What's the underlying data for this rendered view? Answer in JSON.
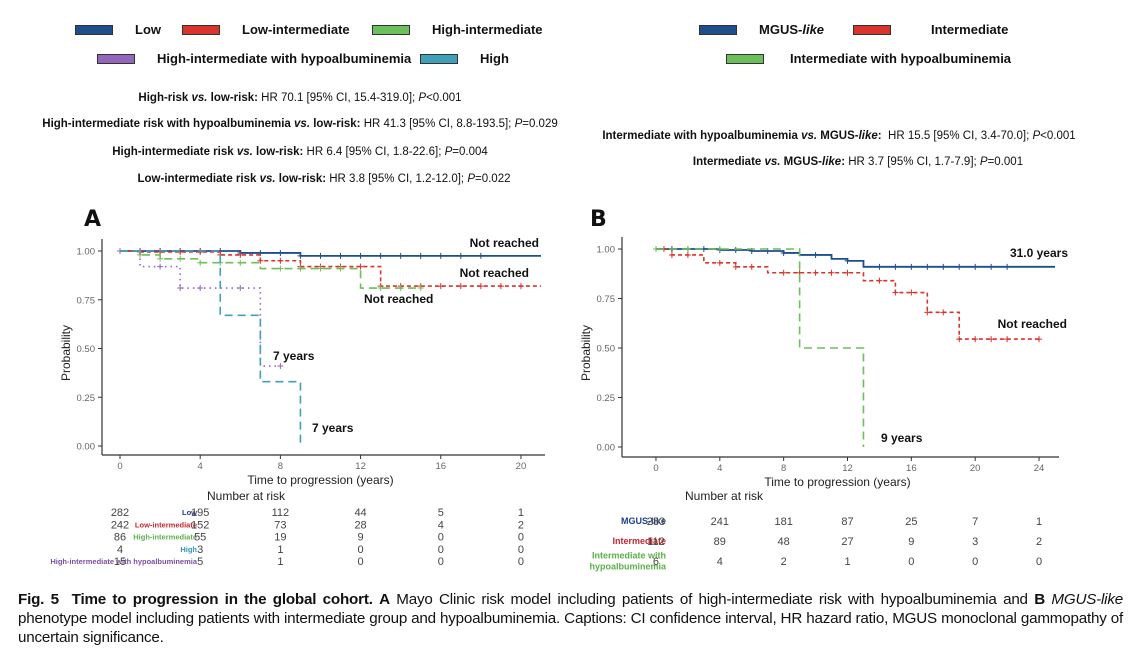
{
  "panelA": {
    "label": "A",
    "legend": [
      {
        "name": "Low",
        "color": "#1f4e8c"
      },
      {
        "name": "Low-intermediate",
        "color": "#d9342b"
      },
      {
        "name": "High-intermediate",
        "color": "#6cbf5a"
      },
      {
        "name": "High-intermediate with hypoalbuminemia",
        "color": "#9467bd"
      },
      {
        "name": "High",
        "color": "#3fa0b8"
      }
    ],
    "hr_lines": [
      {
        "bold": "High-risk ",
        "italic_bold": "vs.",
        "bold2": " low-risk:",
        "text": " HR 70.1 [95% CI, 15.4-319.0]; ",
        "p_label": "P",
        "p_value": "<0.001"
      },
      {
        "bold": "High-intermediate risk with hypoalbuminemia ",
        "italic_bold": "vs.",
        "bold2": " low-risk:",
        "text": " HR 41.3 [95% CI, 8.8-193.5]; ",
        "p_label": "P",
        "p_value": "=0.029"
      },
      {
        "bold": "High-intermediate risk ",
        "italic_bold": "vs.",
        "bold2": " low-risk:",
        "text": " HR 6.4 [95% CI, 1.8-22.6]; ",
        "p_label": "P",
        "p_value": "=0.004"
      },
      {
        "bold": "Low-intermediate risk ",
        "italic_bold": "vs.",
        "bold2": " low-risk:",
        "text": " HR 3.8 [95% CI, 1.2-12.0]; ",
        "p_label": "P",
        "p_value": "=0.022"
      }
    ],
    "risk_table": {
      "title": "Number at risk",
      "rows": [
        {
          "label": "Low",
          "color": "#1f3f8a",
          "values": [
            282,
            195,
            112,
            44,
            5,
            1
          ]
        },
        {
          "label": "Low-intermediate",
          "color": "#c0282c",
          "values": [
            242,
            152,
            73,
            28,
            4,
            2
          ]
        },
        {
          "label": "High-intermediate",
          "color": "#5cb04a",
          "values": [
            86,
            55,
            19,
            9,
            0,
            0
          ]
        },
        {
          "label": "High",
          "color": "#2f95b5",
          "values": [
            4,
            3,
            1,
            0,
            0,
            0
          ]
        },
        {
          "label": "High-intermediate with hypoalbuminemia",
          "color": "#7b4fa0",
          "values": [
            15,
            5,
            1,
            0,
            0,
            0
          ]
        }
      ]
    }
  },
  "panelB": {
    "label": "B",
    "legend": [
      {
        "name": "MGUS-",
        "name_italic": "like",
        "color": "#1f4e8c"
      },
      {
        "name": "Intermediate",
        "name_italic": "",
        "color": "#d9342b"
      },
      {
        "name": "Intermediate with hypoalbuminemia",
        "name_italic": "",
        "color": "#6cbf5a"
      }
    ],
    "hr_lines": [
      {
        "bold": "Intermediate with hypoalbuminemia ",
        "italic_bold": "vs.",
        "bold2": " MGUS-",
        "bold_italic_tail": "like",
        "bold3": ":",
        "text": "  HR 15.5 [95% CI, 3.4-70.0]; ",
        "p_label": "P",
        "p_value": "<0.001"
      },
      {
        "bold": "Intermediate ",
        "italic_bold": "vs.",
        "bold2": " MGUS-",
        "bold_italic_tail": "like",
        "bold3": ":",
        "text": " HR 3.7 [95% CI, 1.7-7.9]; ",
        "p_label": "P",
        "p_value": "=0.001"
      }
    ],
    "risk_table": {
      "title": "Number at risk",
      "rows": [
        {
          "label": "MGUS-like",
          "color": "#1f3f8a",
          "values": [
            283,
            241,
            181,
            87,
            25,
            7,
            1
          ]
        },
        {
          "label": "Intermediate",
          "color": "#c0282c",
          "values": [
            112,
            89,
            48,
            27,
            9,
            3,
            2
          ]
        },
        {
          "label": "Intermediate with hypoalbuminemia",
          "color": "#5cb04a",
          "values": [
            6,
            4,
            2,
            1,
            0,
            0,
            0
          ]
        }
      ]
    }
  },
  "caption": {
    "fig": "Fig. 5",
    "title": "Time to progression in the global cohort.",
    "part_a_label": "A",
    "part_a_text": " Mayo Clinic risk model including patients of high-intermediate risk with hypoalbuminemia and ",
    "part_b_label": "B",
    "part_b_italic": " MGUS-like",
    "part_b_text": " phenotype model including patients with intermediate group and hypoalbuminemia. Captions: CI confidence interval, HR hazard ratio, MGUS monoclonal gammopathy of uncertain significance."
  },
  "chart_data": [
    {
      "type": "line",
      "title": "A",
      "xlabel": "Time to progression (years)",
      "ylabel": "Probability",
      "xlim": [
        0,
        21
      ],
      "ylim": [
        0,
        1
      ],
      "x_ticks": [
        0,
        4,
        8,
        12,
        16,
        20
      ],
      "y_ticks": [
        "0.00",
        "0.25",
        "0.50",
        "0.75",
        "1.00"
      ],
      "grid": false,
      "legend_position": "top",
      "series": [
        {
          "name": "Low",
          "color": "#1f4e8c",
          "dash": "solid",
          "steps": [
            [
              0,
              1.0
            ],
            [
              6,
              0.99
            ],
            [
              9,
              0.975
            ],
            [
              21,
              0.975
            ]
          ],
          "censor": [
            0,
            1,
            2,
            3,
            4,
            5,
            6,
            7,
            8,
            9,
            10,
            11,
            12,
            13,
            14,
            15,
            16,
            17,
            18
          ],
          "median_label": "Not reached"
        },
        {
          "name": "Low-intermediate",
          "color": "#d9342b",
          "dash": "short",
          "steps": [
            [
              0,
              1.0
            ],
            [
              1,
              0.995
            ],
            [
              5,
              0.98
            ],
            [
              7,
              0.95
            ],
            [
              9,
              0.92
            ],
            [
              13,
              0.82
            ],
            [
              21,
              0.82
            ]
          ],
          "censor": [
            1,
            2,
            3,
            4,
            5,
            6,
            7,
            8,
            9,
            10,
            11,
            12,
            13,
            14,
            15,
            16,
            17,
            18,
            19,
            20
          ],
          "median_label": "Not reached"
        },
        {
          "name": "High-intermediate",
          "color": "#6cbf5a",
          "dash": "long",
          "steps": [
            [
              0,
              1.0
            ],
            [
              1,
              0.98
            ],
            [
              2,
              0.96
            ],
            [
              4,
              0.94
            ],
            [
              7,
              0.91
            ],
            [
              12,
              0.81
            ],
            [
              15,
              0.81
            ]
          ],
          "censor": [
            1,
            2,
            3,
            4,
            5,
            6,
            8,
            9,
            10,
            11,
            13,
            14,
            15
          ],
          "median_label": "Not reached"
        },
        {
          "name": "High-intermediate with hypoalbuminemia",
          "color": "#9467bd",
          "dash": "dot",
          "steps": [
            [
              0,
              1.0
            ],
            [
              1,
              0.92
            ],
            [
              3,
              0.81
            ],
            [
              7,
              0.41
            ],
            [
              8,
              0.41
            ]
          ],
          "censor": [
            0,
            2,
            3,
            4,
            6,
            8
          ],
          "median_label": "7 years"
        },
        {
          "name": "High",
          "color": "#3fa0b8",
          "dash": "long",
          "steps": [
            [
              0,
              1.0
            ],
            [
              5,
              0.67
            ],
            [
              7,
              0.33
            ],
            [
              9,
              0.0
            ]
          ],
          "censor": [],
          "median_label": "7 years"
        }
      ]
    },
    {
      "type": "line",
      "title": "B",
      "xlabel": "Time to progression (years)",
      "ylabel": "Probability",
      "xlim": [
        -1,
        25
      ],
      "ylim": [
        0,
        1
      ],
      "x_ticks": [
        0,
        4,
        8,
        12,
        16,
        20,
        24
      ],
      "y_ticks": [
        "0.00",
        "0.25",
        "0.50",
        "0.75",
        "1.00"
      ],
      "grid": false,
      "legend_position": "top",
      "series": [
        {
          "name": "MGUS-like",
          "color": "#1f4e8c",
          "dash": "solid",
          "steps": [
            [
              0,
              1.0
            ],
            [
              4,
              0.995
            ],
            [
              6,
              0.99
            ],
            [
              8,
              0.98
            ],
            [
              9,
              0.97
            ],
            [
              11,
              0.95
            ],
            [
              12,
              0.94
            ],
            [
              13,
              0.91
            ],
            [
              25,
              0.91
            ]
          ],
          "censor": [
            1,
            2,
            3,
            4,
            5,
            6,
            7,
            8,
            10,
            12,
            14,
            15,
            16,
            17,
            18,
            19,
            20,
            21,
            22
          ],
          "median_label": "31.0 years"
        },
        {
          "name": "Intermediate",
          "color": "#d9342b",
          "dash": "short",
          "steps": [
            [
              0,
              1.0
            ],
            [
              1,
              0.97
            ],
            [
              3,
              0.93
            ],
            [
              5,
              0.91
            ],
            [
              7,
              0.88
            ],
            [
              13,
              0.84
            ],
            [
              15,
              0.78
            ],
            [
              17,
              0.68
            ],
            [
              19,
              0.545
            ],
            [
              24,
              0.545
            ]
          ],
          "censor": [
            0.5,
            1,
            2,
            4,
            5,
            6,
            8,
            9,
            10,
            11,
            12,
            14,
            15,
            16,
            17,
            18,
            19,
            20,
            21,
            22,
            24
          ],
          "median_label": "Not reached"
        },
        {
          "name": "Intermediate with hypoalbuminemia",
          "color": "#6cbf5a",
          "dash": "long",
          "steps": [
            [
              0,
              1.0
            ],
            [
              9,
              0.5
            ],
            [
              13,
              0.0
            ]
          ],
          "censor": [
            0,
            2,
            4
          ],
          "median_label": "9 years"
        }
      ]
    }
  ]
}
